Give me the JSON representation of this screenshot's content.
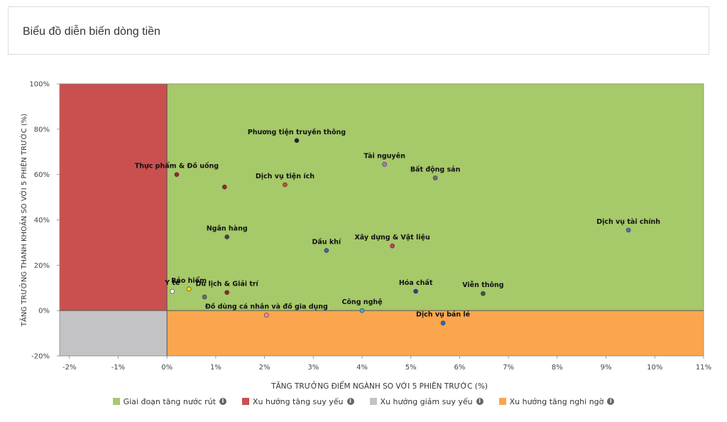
{
  "header": {
    "title": "Biểu đồ diễn biến dòng tiền"
  },
  "legend": {
    "items": [
      {
        "label": "Giai đoạn tăng nước rút",
        "color": "#a6c96a",
        "icon": "info-icon"
      },
      {
        "label": "Xu hướng tăng suy yếu",
        "color": "#c9504f",
        "icon": "info-icon"
      },
      {
        "label": "Xu hướng giảm suy yếu",
        "color": "#c3c3c6",
        "icon": "info-icon"
      },
      {
        "label": "Xu hướng tăng nghi ngờ",
        "color": "#f9a64f",
        "icon": "info-icon"
      }
    ]
  },
  "chart_data": {
    "type": "scatter",
    "xlabel": "TĂNG TRƯỞNG ĐIỂM NGÀNH SO VỚI 5 PHIÊN TRƯỚC (%)",
    "ylabel": "TĂNG TRƯỞNG THANH KHOẢN SO VỚI 5 PHIÊN TRƯỚC (%)",
    "xlim": [
      -2.2,
      11
    ],
    "ylim": [
      -20,
      100
    ],
    "xticks": [
      "-2%",
      "-1%",
      "0%",
      "1%",
      "2%",
      "3%",
      "4%",
      "5%",
      "6%",
      "7%",
      "8%",
      "9%",
      "10%",
      "11%"
    ],
    "xtick_values": [
      -2,
      -1,
      0,
      1,
      2,
      3,
      4,
      5,
      6,
      7,
      8,
      9,
      10,
      11
    ],
    "yticks": [
      "-20%",
      "0%",
      "20%",
      "40%",
      "60%",
      "80%",
      "100%"
    ],
    "ytick_values": [
      -20,
      0,
      20,
      40,
      60,
      80,
      100
    ],
    "quadrants": {
      "top_right": "#a6c96a",
      "top_left": "#c9504f",
      "bottom_left": "#c3c3c6",
      "bottom_right": "#f9a64f"
    },
    "points": [
      {
        "label": "Phương tiện truyền thông",
        "x": 2.66,
        "y": 75,
        "color": "#222222"
      },
      {
        "label": "Tài nguyên",
        "x": 4.46,
        "y": 64.5,
        "color": "#b86bd6"
      },
      {
        "label": "Bất động sản",
        "x": 5.5,
        "y": 58.5,
        "color": "#6e6e6e"
      },
      {
        "label": "Thực phẩm & Đồ uống",
        "x": 0.2,
        "y": 60,
        "color": "#a0222a"
      },
      {
        "label": "Dịch vụ tiện ích",
        "x": 2.42,
        "y": 55.5,
        "color": "#d14a2c"
      },
      {
        "label": "",
        "x": 1.18,
        "y": 54.5,
        "color": "#a0222a"
      },
      {
        "label": "Dịch vụ tài chính",
        "x": 9.46,
        "y": 35.5,
        "color": "#4a6ed1"
      },
      {
        "label": "Ngân hàng",
        "x": 1.23,
        "y": 32.5,
        "color": "#444444"
      },
      {
        "label": "Xây dựng & Vật liệu",
        "x": 4.62,
        "y": 28.5,
        "color": "#d6345a"
      },
      {
        "label": "Dầu khí",
        "x": 3.27,
        "y": 26.5,
        "color": "#3a64c0"
      },
      {
        "label": "Y tế",
        "x": 0.11,
        "y": 8.5,
        "color": "#ffffff"
      },
      {
        "label": "Bảo hiểm",
        "x": 0.45,
        "y": 9.5,
        "color": "#f2e600"
      },
      {
        "label": "",
        "x": 0.77,
        "y": 6,
        "color": "#6e6e6e"
      },
      {
        "label": "Du lịch & Giải trí",
        "x": 1.23,
        "y": 8,
        "color": "#a0222a"
      },
      {
        "label": "Hóa chất",
        "x": 5.1,
        "y": 8.5,
        "color": "#3a3a8a"
      },
      {
        "label": "Viễn thông",
        "x": 6.48,
        "y": 7.5,
        "color": "#445544"
      },
      {
        "label": "Đồ dùng cá nhân và đồ gia dụng",
        "x": 2.04,
        "y": -2,
        "color": "#e68fb0"
      },
      {
        "label": "Công nghệ",
        "x": 4.0,
        "y": 0,
        "color": "#3ab0d8"
      },
      {
        "label": "Dịch vụ bán lẻ",
        "x": 5.66,
        "y": -5.5,
        "color": "#3a64c0"
      }
    ]
  }
}
